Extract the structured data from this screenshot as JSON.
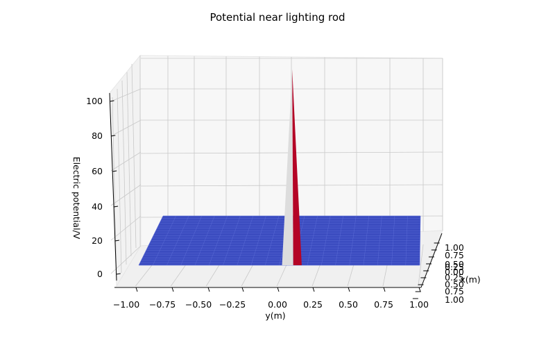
{
  "chart_data": {
    "type": "surface",
    "title": "Potential near lighting rod",
    "xlabel": "x(m)",
    "ylabel": "y(m)",
    "zlabel": "Electric potential/V",
    "xlim": [
      -1.0,
      1.0
    ],
    "ylim": [
      -1.0,
      1.0
    ],
    "zlim": [
      -10,
      110
    ],
    "x_ticks": [
      "1.00",
      "0.75",
      "0.50",
      "0.25",
      "0.00",
      "0.25",
      "0.50",
      "0.75",
      "1.00"
    ],
    "x_tick_labels_visible": [
      "1.00",
      "0.75",
      "0.50",
      "0.25",
      "0.00",
      "0.25",
      "0.50",
      "0.75",
      "1.00"
    ],
    "y_ticks": [
      -1.0,
      -0.75,
      -0.5,
      -0.25,
      0.0,
      0.25,
      0.5,
      0.75,
      1.0
    ],
    "y_tick_labels": [
      "−1.00",
      "−0.75",
      "−0.50",
      "−0.25",
      "0.00",
      "0.25",
      "0.50",
      "0.75",
      "1.00"
    ],
    "z_ticks": [
      0,
      20,
      40,
      60,
      80,
      100
    ],
    "z_tick_labels": [
      "0",
      "20",
      "40",
      "60",
      "80",
      "100"
    ],
    "surface": {
      "base_potential": 0,
      "peak_potential": 100,
      "peak_x": 0.0,
      "peak_y": 0.0,
      "colormap_low": "#3b4cc0",
      "colormap_mid": "#dddddd",
      "colormap_high": "#b40426"
    },
    "grid": true,
    "pane_color": "#f2f2f2"
  }
}
